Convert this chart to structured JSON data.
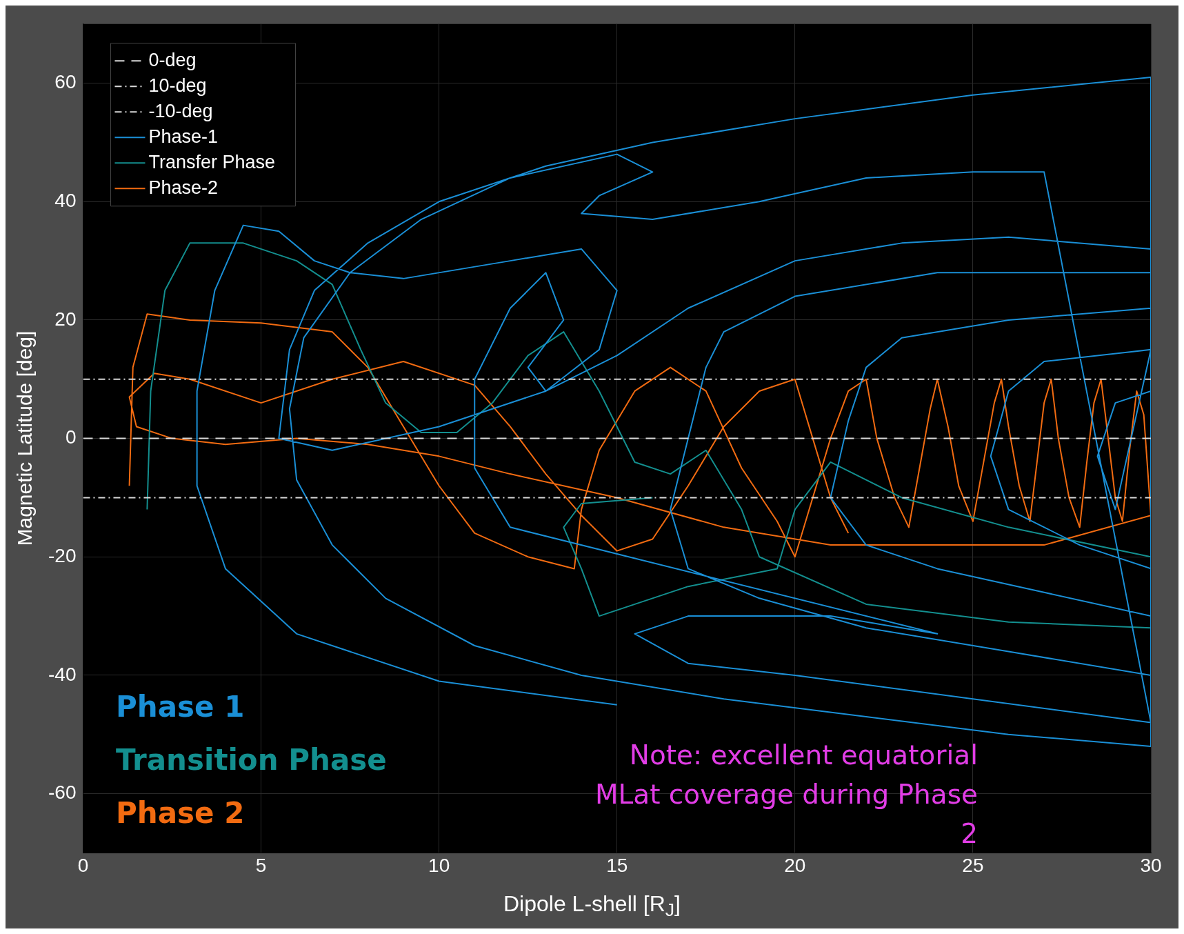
{
  "chart_data": {
    "type": "line",
    "xlabel": "Dipole L-shell [R$_{J}$]",
    "ylabel": "Magnetic Latitude [deg]",
    "xlim": [
      0,
      30
    ],
    "xticks": [
      0,
      5,
      10,
      15,
      20,
      25,
      30
    ],
    "ylim": [
      -70,
      70
    ],
    "yticks": [
      -60,
      -40,
      -20,
      0,
      20,
      40,
      60
    ],
    "grid": true,
    "legend": "top left",
    "line_style": "solid",
    "marker": "none",
    "ref_lines": [
      {
        "axis": "y",
        "value": 0,
        "label": "0-deg",
        "color": "#d9d9d9",
        "line_style": "dashed"
      },
      {
        "axis": "y",
        "value": 10,
        "label": "10-deg",
        "color": "#d9d9d9",
        "line_style": "dotted"
      },
      {
        "axis": "y",
        "value": -10,
        "label": "-10-deg",
        "color": "#d9d9d9",
        "line_style": "dotted"
      }
    ],
    "series": [
      {
        "name": "Phase-1",
        "color": "#1a8fd6",
        "x": [
          15,
          10,
          6,
          4,
          3.2,
          3.2,
          3.7,
          4.5,
          5.5,
          6.5,
          7.5,
          9,
          12,
          14,
          15,
          14.5,
          13,
          10,
          7,
          5.5,
          5.8,
          6.5,
          8,
          10,
          13,
          16,
          20,
          25,
          30,
          30,
          26,
          22,
          18,
          14,
          11,
          8.5,
          7,
          6,
          5.8,
          6.2,
          7.5,
          9.5,
          12,
          15,
          16,
          14.5,
          14,
          16,
          19,
          22,
          25,
          27,
          30,
          25,
          20,
          17,
          15.5,
          17,
          21,
          24,
          12,
          11,
          11,
          12,
          13,
          13.5,
          12.5,
          13,
          15,
          17,
          20,
          23,
          26,
          30,
          30,
          26,
          22,
          19,
          17,
          16.5,
          17,
          17.5,
          18,
          20,
          24,
          30,
          30,
          27,
          24,
          22,
          21,
          21.5,
          22,
          23,
          26,
          30,
          30,
          28,
          26,
          25.5,
          26,
          27,
          30,
          29,
          28.5,
          29,
          30
        ],
        "values": [
          -45,
          -41,
          -33,
          -22,
          -8,
          8,
          25,
          36,
          35,
          30,
          28,
          27,
          30,
          32,
          25,
          15,
          8,
          2,
          -2,
          0,
          15,
          25,
          33,
          40,
          46,
          50,
          54,
          58,
          61,
          -52,
          -50,
          -47,
          -44,
          -40,
          -35,
          -27,
          -18,
          -7,
          5,
          17,
          28,
          37,
          44,
          48,
          45,
          41,
          38,
          37,
          40,
          44,
          45,
          45,
          -48,
          -44,
          -40,
          -38,
          -33,
          -30,
          -30,
          -33,
          -15,
          -5,
          10,
          22,
          28,
          20,
          12,
          8,
          14,
          22,
          30,
          33,
          34,
          32,
          -40,
          -36,
          -32,
          -27,
          -22,
          -12,
          0,
          12,
          18,
          24,
          28,
          28,
          -30,
          -26,
          -22,
          -18,
          -10,
          3,
          12,
          17,
          20,
          22,
          -22,
          -18,
          -12,
          -3,
          8,
          13,
          15,
          -12,
          -3,
          6,
          8
        ]
      },
      {
        "name": "Transfer Phase",
        "color": "#138f8f",
        "x": [
          1.8,
          1.9,
          2.3,
          3,
          4.5,
          6,
          7,
          7.8,
          8.5,
          9.5,
          10.5,
          11.5,
          12.5,
          13.5,
          14.5,
          15.5,
          16.5,
          17.5,
          18.5,
          19,
          22,
          26,
          30,
          30,
          26,
          23,
          21,
          20,
          19.5,
          17,
          14.5,
          14,
          13.5,
          14,
          16
        ],
        "values": [
          -12,
          8,
          25,
          33,
          33,
          30,
          26,
          15,
          6,
          1,
          1,
          6,
          14,
          18,
          8,
          -4,
          -6,
          -2,
          -12,
          -20,
          -28,
          -31,
          -32,
          -20,
          -15,
          -10,
          -4,
          -12,
          -22,
          -25,
          -30,
          -22,
          -15,
          -11,
          -10
        ]
      },
      {
        "name": "Phase-2",
        "color": "#f26b11",
        "x": [
          1.3,
          1.4,
          1.8,
          3,
          5,
          7,
          8,
          9,
          10,
          11,
          12.5,
          13.8,
          14,
          14.5,
          15.5,
          16.5,
          17.5,
          18.5,
          19.5,
          20,
          20.5,
          21,
          21.5,
          22,
          22.3,
          22.8,
          23.2,
          23.5,
          23.8,
          24,
          24.3,
          24.6,
          25,
          25.3,
          25.6,
          25.8,
          26,
          26.3,
          26.6,
          26.8,
          27,
          27.2,
          27.4,
          27.7,
          28,
          28.2,
          28.4,
          28.6,
          28.8,
          29,
          29.2,
          29.4,
          29.6,
          29.8,
          30,
          27,
          24,
          21,
          18,
          15,
          12,
          10,
          8,
          6,
          4,
          2.5,
          1.5,
          1.3,
          2,
          3,
          5,
          7,
          9,
          11,
          12,
          13,
          14,
          15,
          16,
          17,
          18,
          19,
          20,
          20.5,
          21,
          21.5
        ],
        "values": [
          -8,
          12,
          21,
          20,
          19.5,
          18,
          12,
          2,
          -8,
          -16,
          -20,
          -22,
          -12,
          -2,
          8,
          12,
          8,
          -5,
          -14,
          -20,
          -10,
          0,
          8,
          10,
          0,
          -10,
          -15,
          -5,
          5,
          10,
          2,
          -8,
          -14,
          -4,
          6,
          10,
          2,
          -8,
          -14,
          -4,
          6,
          10,
          0,
          -10,
          -15,
          -4,
          6,
          10,
          0,
          -10,
          -14,
          -2,
          8,
          4,
          -13,
          -18,
          -18,
          -18,
          -15,
          -10,
          -6,
          -3,
          -1,
          0,
          -1,
          0,
          2,
          7,
          11,
          10,
          6,
          10,
          13,
          9,
          2,
          -6,
          -13,
          -19,
          -17,
          -8,
          2,
          8,
          10,
          0,
          -10,
          -16
        ]
      }
    ],
    "annotations": [
      "Phase 1",
      "Transition Phase",
      "Phase 2",
      "Note: excellent equatorial MLat coverage during Phase 2"
    ]
  }
}
